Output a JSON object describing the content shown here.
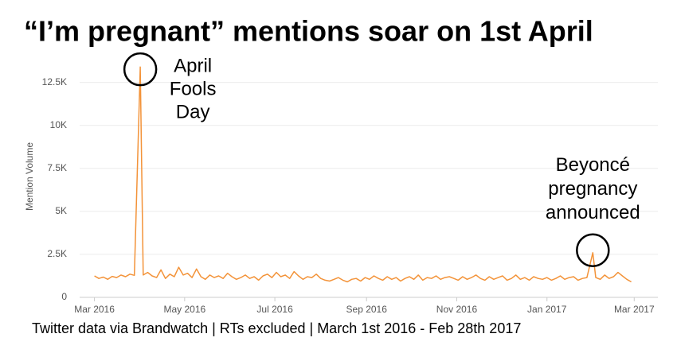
{
  "chart_data": {
    "type": "line",
    "title": "“I’m pregnant” mentions soar on 1st April",
    "ylabel": "Mention Volume",
    "source": "Twitter data via Brandwatch | RTs excluded | March 1st 2016 - Feb 28th 2017",
    "color": "#f39339",
    "grid": true,
    "xlim": [
      -10,
      381
    ],
    "xticks": [
      {
        "value": 0,
        "label": "Mar 2016"
      },
      {
        "value": 61,
        "label": "May 2016"
      },
      {
        "value": 122,
        "label": "Jul 2016"
      },
      {
        "value": 184,
        "label": "Sep 2016"
      },
      {
        "value": 245,
        "label": "Nov 2016"
      },
      {
        "value": 306,
        "label": "Jan 2017"
      },
      {
        "value": 365,
        "label": "Mar 2017"
      }
    ],
    "ylim": [
      0,
      13500
    ],
    "yticks": [
      0,
      {
        "value": 2500,
        "label": "2.5K"
      },
      {
        "value": 5000,
        "label": "5K"
      },
      {
        "value": 7500,
        "label": "7.5K"
      },
      {
        "value": 10000,
        "label": "10K"
      },
      {
        "value": 12500,
        "label": "12.5K"
      }
    ],
    "annotations": [
      {
        "text": [
          "April",
          "Fools",
          "Day"
        ],
        "point": 10
      },
      {
        "text": [
          "Beyoncé",
          "pregnancy",
          "announced"
        ],
        "point": 112
      }
    ],
    "x": [
      0,
      3,
      6,
      9,
      12,
      15,
      18,
      21,
      24,
      27,
      31,
      33,
      36,
      39,
      42,
      45,
      48,
      51,
      54,
      57,
      60,
      63,
      66,
      69,
      72,
      75,
      78,
      81,
      84,
      87,
      90,
      93,
      96,
      99,
      102,
      105,
      108,
      111,
      114,
      117,
      120,
      123,
      126,
      129,
      132,
      135,
      138,
      141,
      144,
      147,
      150,
      153,
      156,
      159,
      162,
      165,
      168,
      171,
      174,
      177,
      180,
      183,
      186,
      189,
      192,
      195,
      198,
      201,
      204,
      207,
      210,
      213,
      216,
      219,
      222,
      225,
      228,
      231,
      234,
      237,
      240,
      243,
      246,
      249,
      252,
      255,
      258,
      261,
      264,
      267,
      270,
      273,
      276,
      279,
      282,
      285,
      288,
      291,
      294,
      297,
      300,
      303,
      306,
      309,
      312,
      315,
      318,
      321,
      324,
      327,
      330,
      333,
      337,
      339,
      342,
      345,
      348,
      351,
      354,
      357,
      360,
      363
    ],
    "values": [
      1250,
      1100,
      1180,
      1050,
      1220,
      1150,
      1300,
      1200,
      1350,
      1280,
      13400,
      1300,
      1450,
      1250,
      1150,
      1600,
      1100,
      1350,
      1200,
      1750,
      1300,
      1400,
      1150,
      1650,
      1200,
      1050,
      1300,
      1150,
      1250,
      1100,
      1400,
      1200,
      1050,
      1150,
      1300,
      1100,
      1200,
      1000,
      1250,
      1350,
      1150,
      1450,
      1200,
      1300,
      1100,
      1500,
      1250,
      1050,
      1200,
      1150,
      1350,
      1100,
      1000,
      950,
      1050,
      1150,
      1000,
      900,
      1050,
      1100,
      950,
      1150,
      1050,
      1250,
      1100,
      1000,
      1200,
      1050,
      1150,
      950,
      1100,
      1200,
      1050,
      1300,
      1000,
      1150,
      1100,
      1250,
      1050,
      1150,
      1200,
      1100,
      1000,
      1200,
      1050,
      1150,
      1300,
      1100,
      1000,
      1200,
      1050,
      1150,
      1250,
      1000,
      1100,
      1300,
      1050,
      1150,
      1000,
      1200,
      1100,
      1050,
      1150,
      1000,
      1100,
      1250,
      1050,
      1150,
      1200,
      1000,
      1100,
      1150,
      2600,
      1150,
      1050,
      1300,
      1100,
      1200,
      1450,
      1250,
      1050,
      900
    ]
  }
}
